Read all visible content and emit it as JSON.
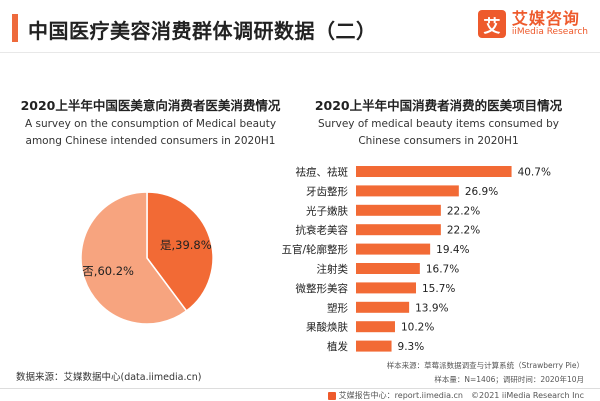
{
  "header": {
    "title": "中国医疗美容消费群体调研数据（二）",
    "logo_mark": "艾",
    "logo_cn": "艾媒咨询",
    "logo_en": "iiMedia Research"
  },
  "colors": {
    "accent": "#ee6a3c",
    "pie_yes": "#f26a35",
    "pie_no": "#f7a47f",
    "bar": "#f26a35"
  },
  "chart_data": [
    {
      "type": "pie",
      "title": "2020上半年中国医美意向消费者医美消费情况",
      "subtitle": "A survey on the consumption of Medical beauty among Chinese intended consumers in 2020H1",
      "labels": [
        "是",
        "否"
      ],
      "values": [
        39.8,
        60.2
      ],
      "data_labels": [
        "是,39.8%",
        "否,60.2%"
      ]
    },
    {
      "type": "bar",
      "orientation": "horizontal",
      "title": "2020上半年中国消费者消费的医美项目情况",
      "subtitle": "Survey of medical beauty items consumed by Chinese consumers in 2020H1",
      "categories": [
        "祛痘、祛斑",
        "牙齿整形",
        "光子嫩肤",
        "抗衰老美容",
        "五官/轮廓整形",
        "注射类",
        "微整形美容",
        "塑形",
        "果酸焕肤",
        "植发"
      ],
      "values": [
        40.7,
        26.9,
        22.2,
        22.2,
        19.4,
        16.7,
        15.7,
        13.9,
        10.2,
        9.3
      ],
      "data_labels": [
        "40.7%",
        "26.9%",
        "22.2%",
        "22.2%",
        "19.4%",
        "16.7%",
        "15.7%",
        "13.9%",
        "10.2%",
        "9.3%"
      ],
      "xlim": [
        0,
        45
      ]
    }
  ],
  "footer": {
    "source": "数据来源：艾媒数据中心(data.iimedia.cn)",
    "note_line1": "样本来源：草莓派数据调查与计算系统（Strawberry Pie）",
    "note_line2": "样本量：N=1406；调研时间：2020年10月",
    "report_site": "艾媒报告中心：report.iimedia.cn",
    "copyright": "©2021  iiMedia Research  Inc"
  }
}
